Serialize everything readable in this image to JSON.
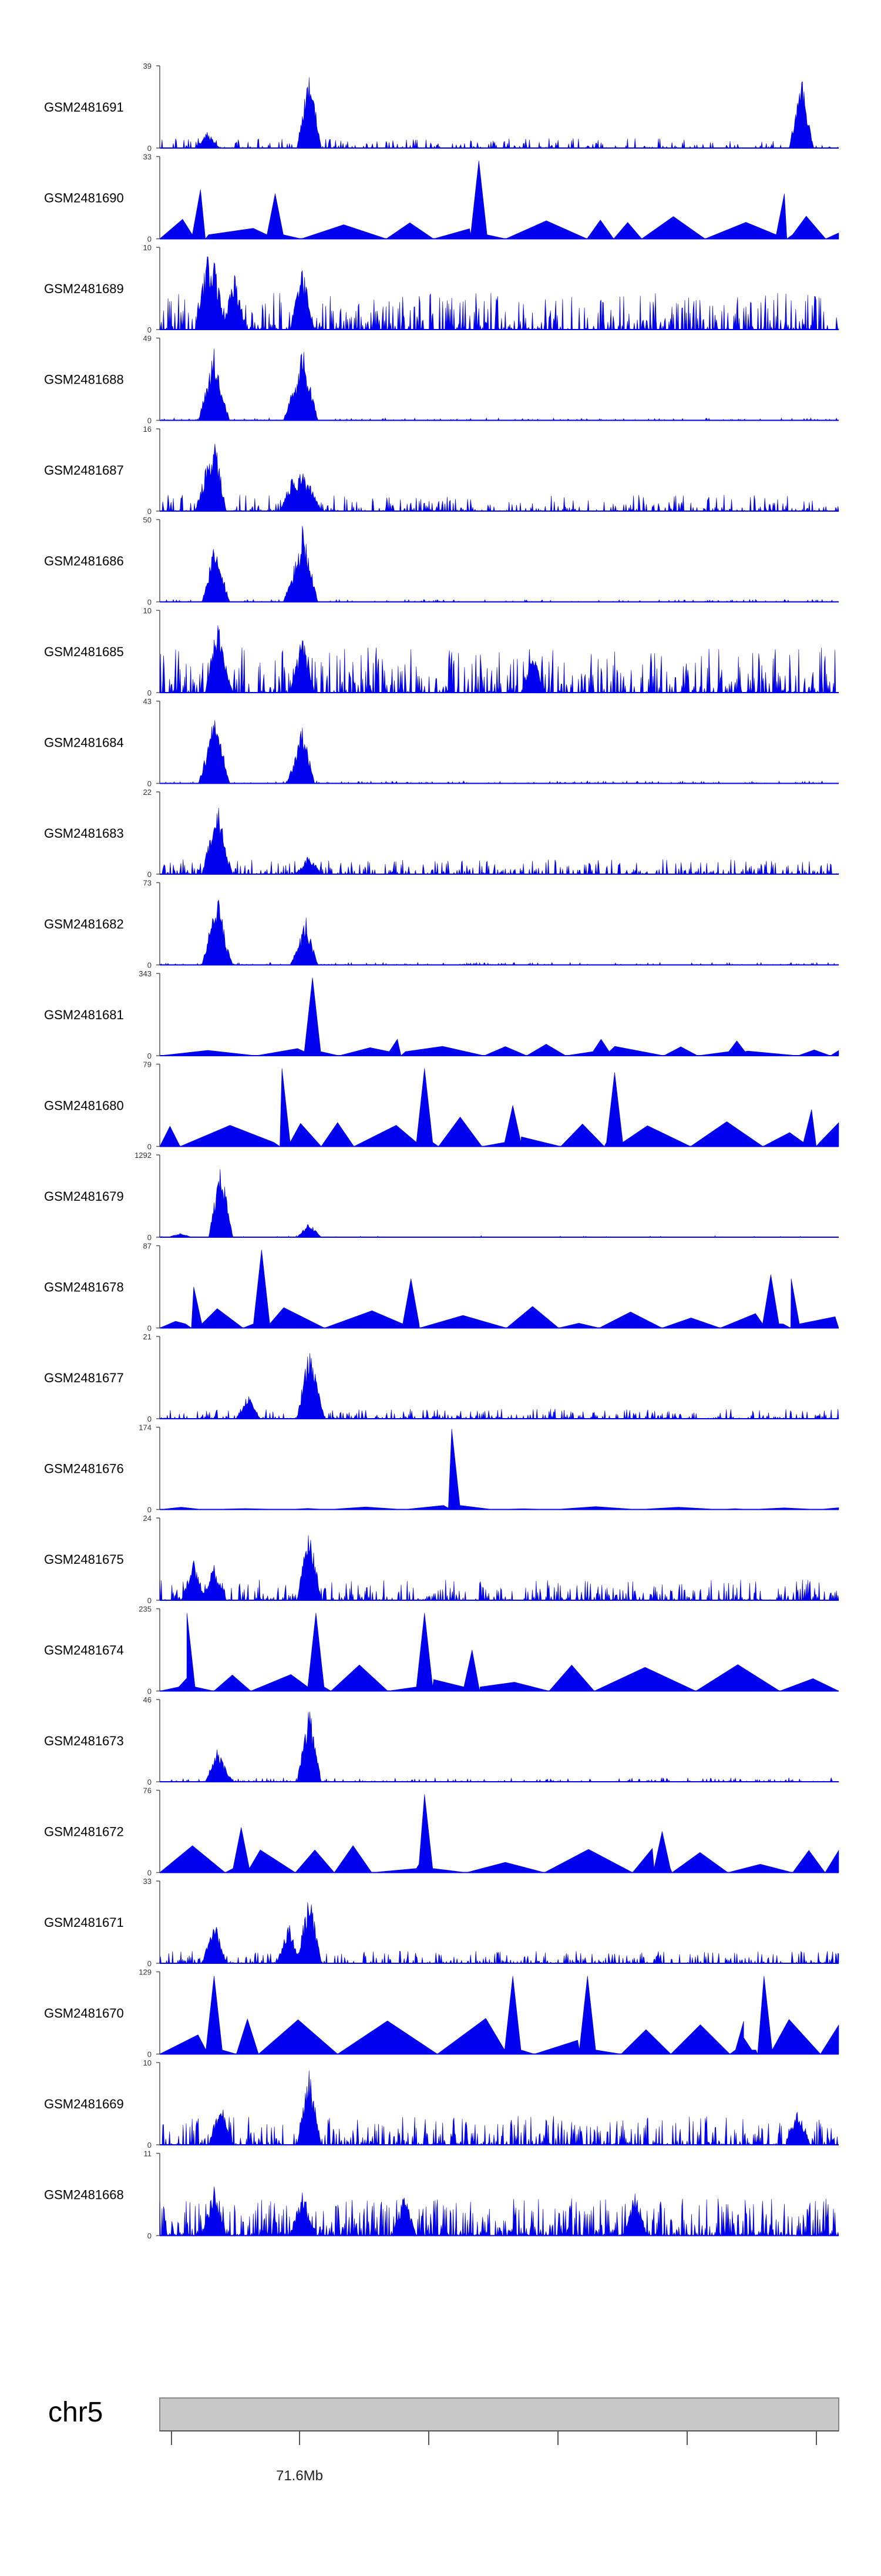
{
  "chart_data": {
    "type": "area",
    "title": "",
    "track_color": "#0000ee",
    "axis_color": "#555555",
    "ideogram_fill": "#c8c8c8",
    "ideogram_stroke": "#888888",
    "chromosome": "chr5",
    "genome_axis": {
      "tick_label": "71.6Mb"
    },
    "tracks": [
      {
        "name": "GSM2481691",
        "ymax": "39",
        "ymin": "0",
        "style": "noise",
        "density": 0.4,
        "peak_scale": 0.12,
        "peaks": [
          [
            0.22,
            1.0
          ],
          [
            0.945,
            0.92
          ],
          [
            0.07,
            0.2
          ]
        ]
      },
      {
        "name": "GSM2481690",
        "ymax": "33",
        "ymin": "0",
        "style": "sparse",
        "density": 0.08,
        "peak_scale": 0.4,
        "peaks": [
          [
            0.47,
            0.95
          ],
          [
            0.06,
            0.6
          ],
          [
            0.17,
            0.55
          ],
          [
            0.92,
            0.55
          ]
        ]
      },
      {
        "name": "GSM2481689",
        "ymax": "10",
        "ymin": "0",
        "style": "noise",
        "density": 0.6,
        "peak_scale": 0.45,
        "peaks": [
          [
            0.07,
            0.95
          ],
          [
            0.08,
            0.85
          ],
          [
            0.21,
            0.8
          ],
          [
            0.11,
            0.7
          ]
        ]
      },
      {
        "name": "GSM2481688",
        "ymax": "49",
        "ymin": "0",
        "style": "noise",
        "density": 0.35,
        "peak_scale": 0.03,
        "peaks": [
          [
            0.08,
            0.9
          ],
          [
            0.075,
            0.7
          ],
          [
            0.085,
            0.6
          ],
          [
            0.21,
            0.95
          ],
          [
            0.215,
            0.7
          ],
          [
            0.2,
            0.5
          ]
        ]
      },
      {
        "name": "GSM2481687",
        "ymax": "16",
        "ymin": "0",
        "style": "noise",
        "density": 0.5,
        "peak_scale": 0.2,
        "peaks": [
          [
            0.08,
            0.95
          ],
          [
            0.07,
            0.6
          ],
          [
            0.21,
            0.6
          ],
          [
            0.195,
            0.45
          ],
          [
            0.22,
            0.35
          ]
        ]
      },
      {
        "name": "GSM2481686",
        "ymax": "50",
        "ymin": "0",
        "style": "noise",
        "density": 0.35,
        "peak_scale": 0.03,
        "peaks": [
          [
            0.08,
            0.7
          ],
          [
            0.085,
            0.6
          ],
          [
            0.21,
            0.95
          ],
          [
            0.215,
            0.75
          ],
          [
            0.2,
            0.5
          ]
        ]
      },
      {
        "name": "GSM2481685",
        "ymax": "10",
        "ymin": "0",
        "style": "noise",
        "density": 0.6,
        "peak_scale": 0.55,
        "peaks": [
          [
            0.085,
            0.95
          ],
          [
            0.09,
            0.6
          ],
          [
            0.21,
            0.75
          ],
          [
            0.55,
            0.5
          ]
        ]
      },
      {
        "name": "GSM2481684",
        "ymax": "43",
        "ymin": "0",
        "style": "noise",
        "density": 0.35,
        "peak_scale": 0.03,
        "peaks": [
          [
            0.08,
            0.9
          ],
          [
            0.085,
            0.8
          ],
          [
            0.075,
            0.6
          ],
          [
            0.21,
            0.75
          ],
          [
            0.205,
            0.5
          ]
        ]
      },
      {
        "name": "GSM2481683",
        "ymax": "22",
        "ymin": "0",
        "style": "noise",
        "density": 0.55,
        "peak_scale": 0.18,
        "peaks": [
          [
            0.085,
            0.95
          ],
          [
            0.08,
            0.7
          ],
          [
            0.09,
            0.5
          ],
          [
            0.22,
            0.25
          ]
        ]
      },
      {
        "name": "GSM2481682",
        "ymax": "73",
        "ymin": "0",
        "style": "noise",
        "density": 0.35,
        "peak_scale": 0.03,
        "peaks": [
          [
            0.085,
            0.95
          ],
          [
            0.08,
            0.7
          ],
          [
            0.09,
            0.5
          ],
          [
            0.215,
            0.6
          ],
          [
            0.21,
            0.4
          ]
        ]
      },
      {
        "name": "GSM2481681",
        "ymax": "343",
        "ymin": "0",
        "style": "sparse",
        "density": 0.01,
        "peak_scale": 0.2,
        "peaks": [
          [
            0.225,
            0.95
          ],
          [
            0.35,
            0.2
          ],
          [
            0.65,
            0.2
          ],
          [
            0.85,
            0.18
          ]
        ]
      },
      {
        "name": "GSM2481680",
        "ymax": "79",
        "ymin": "0",
        "style": "sparse",
        "density": 0.02,
        "peak_scale": 0.5,
        "peaks": [
          [
            0.18,
            0.95
          ],
          [
            0.39,
            0.95
          ],
          [
            0.52,
            0.5
          ],
          [
            0.67,
            0.9
          ],
          [
            0.96,
            0.45
          ]
        ]
      },
      {
        "name": "GSM2481679",
        "ymax": "1292",
        "ymin": "0",
        "style": "noise",
        "density": 0.08,
        "peak_scale": 0.02,
        "peaks": [
          [
            0.09,
            0.95
          ],
          [
            0.22,
            0.18
          ],
          [
            0.03,
            0.05
          ]
        ]
      },
      {
        "name": "GSM2481678",
        "ymax": "87",
        "ymin": "0",
        "style": "sparse",
        "density": 0.05,
        "peak_scale": 0.35,
        "peaks": [
          [
            0.15,
            0.95
          ],
          [
            0.37,
            0.6
          ],
          [
            0.05,
            0.5
          ],
          [
            0.9,
            0.65
          ],
          [
            0.93,
            0.6
          ]
        ]
      },
      {
        "name": "GSM2481677",
        "ymax": "21",
        "ymin": "0",
        "style": "noise",
        "density": 0.5,
        "peak_scale": 0.12,
        "peaks": [
          [
            0.22,
            0.95
          ],
          [
            0.225,
            0.7
          ],
          [
            0.13,
            0.3
          ]
        ]
      },
      {
        "name": "GSM2481676",
        "ymax": "174",
        "ymin": "0",
        "style": "sparse",
        "density": 0.002,
        "peak_scale": 0.05,
        "peaks": [
          [
            0.43,
            0.98
          ]
        ]
      },
      {
        "name": "GSM2481675",
        "ymax": "24",
        "ymin": "0",
        "style": "noise",
        "density": 0.55,
        "peak_scale": 0.25,
        "peaks": [
          [
            0.22,
            0.95
          ],
          [
            0.05,
            0.5
          ],
          [
            0.08,
            0.45
          ]
        ]
      },
      {
        "name": "GSM2481674",
        "ymax": "235",
        "ymin": "0",
        "style": "sparse",
        "density": 0.01,
        "peak_scale": 0.5,
        "peaks": [
          [
            0.04,
            0.95
          ],
          [
            0.23,
            0.95
          ],
          [
            0.39,
            0.95
          ],
          [
            0.46,
            0.5
          ]
        ]
      },
      {
        "name": "GSM2481673",
        "ymax": "46",
        "ymin": "0",
        "style": "noise",
        "density": 0.45,
        "peak_scale": 0.05,
        "peaks": [
          [
            0.22,
            0.95
          ],
          [
            0.085,
            0.45
          ],
          [
            0.09,
            0.3
          ]
        ]
      },
      {
        "name": "GSM2481672",
        "ymax": "76",
        "ymin": "0",
        "style": "sparse",
        "density": 0.02,
        "peak_scale": 0.5,
        "peaks": [
          [
            0.39,
            0.95
          ],
          [
            0.12,
            0.55
          ],
          [
            0.74,
            0.5
          ]
        ]
      },
      {
        "name": "GSM2481671",
        "ymax": "33",
        "ymin": "0",
        "style": "noise",
        "density": 0.55,
        "peak_scale": 0.15,
        "peaks": [
          [
            0.22,
            0.95
          ],
          [
            0.08,
            0.55
          ],
          [
            0.19,
            0.5
          ]
        ]
      },
      {
        "name": "GSM2481670",
        "ymax": "129",
        "ymin": "0",
        "style": "sparse",
        "density": 0.002,
        "peak_scale": 0.6,
        "peaks": [
          [
            0.08,
            0.95
          ],
          [
            0.52,
            0.95
          ],
          [
            0.63,
            0.95
          ],
          [
            0.89,
            0.95
          ],
          [
            0.86,
            0.4
          ]
        ]
      },
      {
        "name": "GSM2481669",
        "ymax": "10",
        "ymin": "0",
        "style": "noise",
        "density": 0.65,
        "peak_scale": 0.35,
        "peaks": [
          [
            0.22,
            0.95
          ],
          [
            0.09,
            0.6
          ],
          [
            0.94,
            0.5
          ]
        ]
      },
      {
        "name": "GSM2481668",
        "ymax": "11",
        "ymin": "0",
        "style": "noise",
        "density": 0.85,
        "peak_scale": 0.45,
        "peaks": [
          [
            0.08,
            0.65
          ],
          [
            0.21,
            0.55
          ],
          [
            0.7,
            0.55
          ],
          [
            0.36,
            0.55
          ]
        ]
      }
    ]
  }
}
